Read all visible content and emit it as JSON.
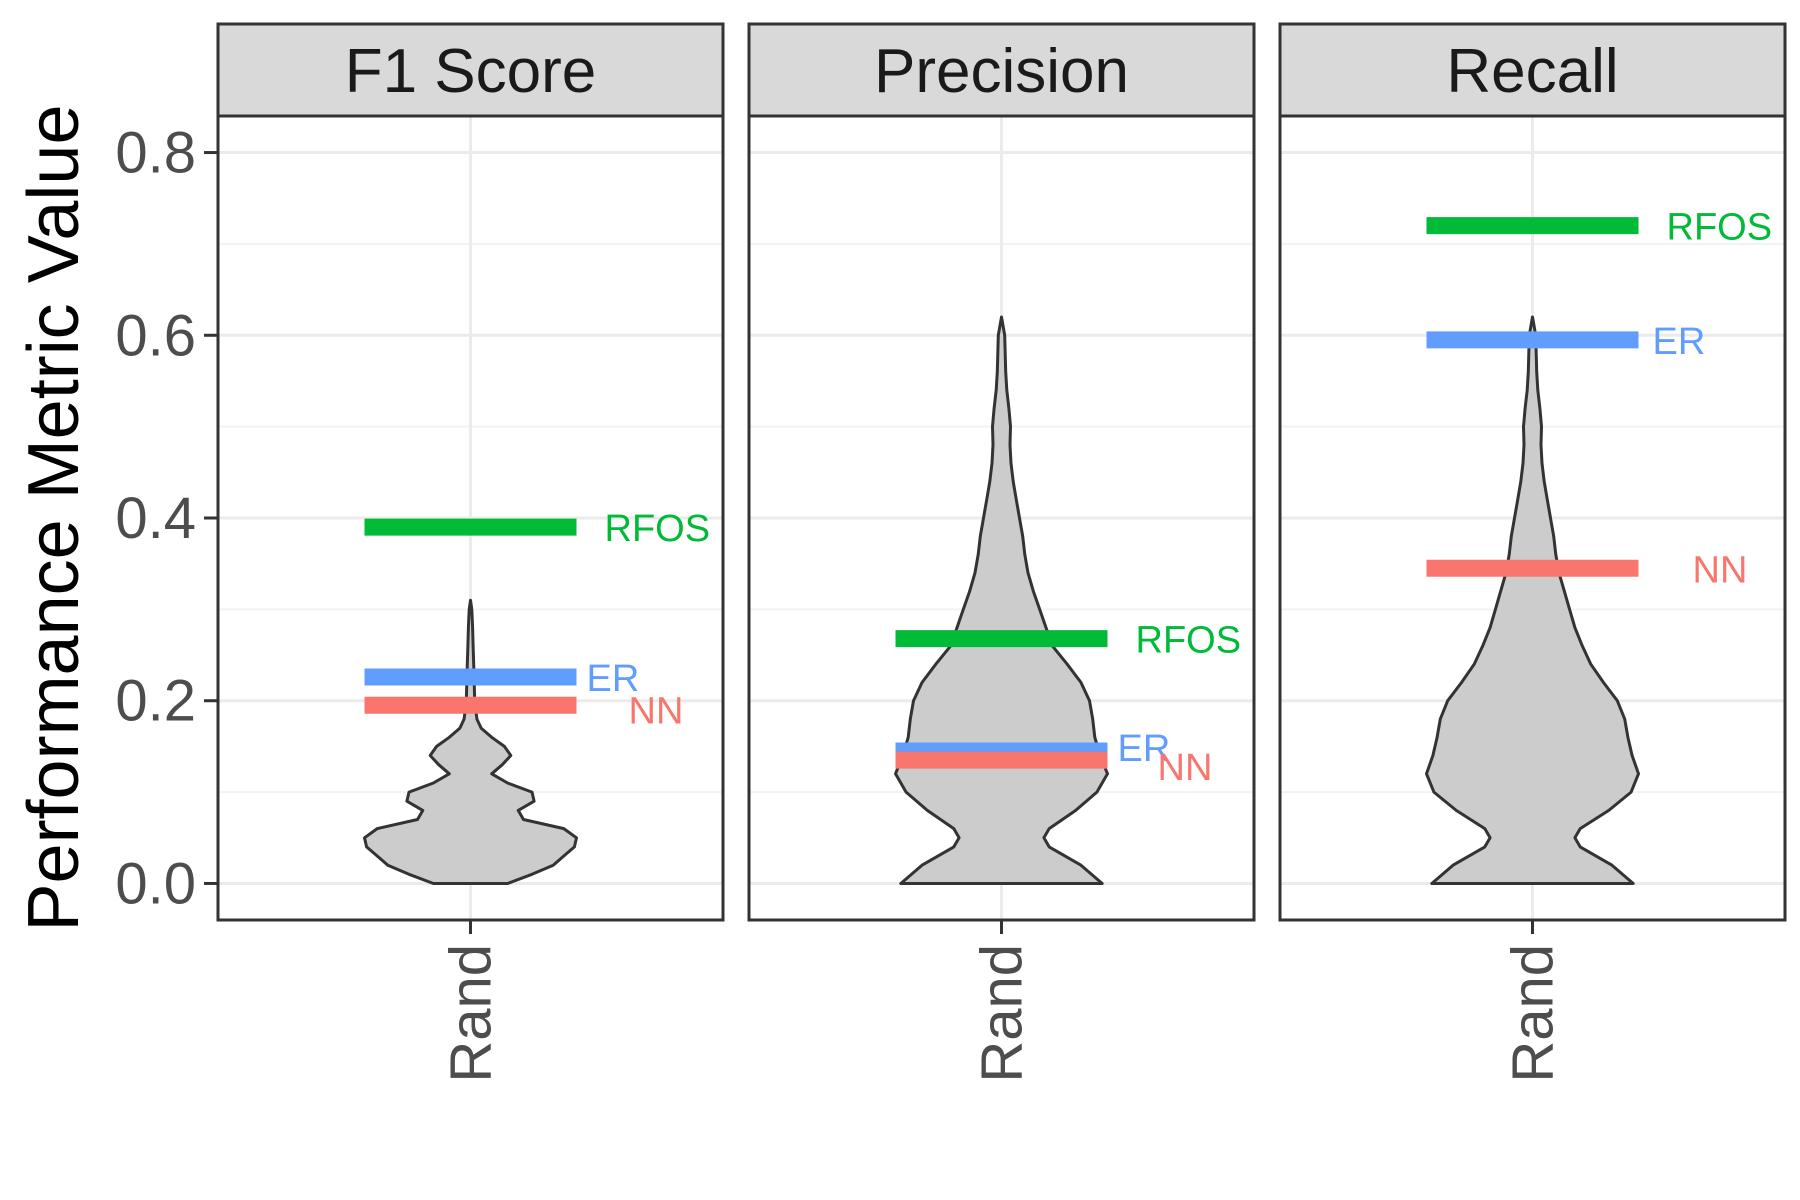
{
  "chart_data": {
    "type": "violin",
    "ylabel": "Performance Metric Value",
    "ylim": [
      -0.04,
      0.84
    ],
    "yticks": [
      0.0,
      0.2,
      0.4,
      0.6,
      0.8
    ],
    "ytick_labels": [
      "0.0",
      "0.2",
      "0.4",
      "0.6",
      "0.8"
    ],
    "grid": true,
    "colors": {
      "RFOS": "#00ba38",
      "ER": "#619cff",
      "NN": "#f8766d",
      "violin_fill": "#cccccc",
      "strip_fill": "#d9d9d9"
    },
    "panels": [
      {
        "facet": "F1 Score",
        "category": "Rand",
        "violin": {
          "y": [
            0.0,
            0.01,
            0.02,
            0.03,
            0.04,
            0.05,
            0.06,
            0.07,
            0.08,
            0.09,
            0.1,
            0.11,
            0.12,
            0.13,
            0.14,
            0.15,
            0.16,
            0.17,
            0.18,
            0.19,
            0.2,
            0.22,
            0.24,
            0.26,
            0.28,
            0.3,
            0.31
          ],
          "half_width": [
            0.35,
            0.58,
            0.78,
            0.88,
            0.98,
            1.0,
            0.88,
            0.5,
            0.45,
            0.6,
            0.58,
            0.35,
            0.2,
            0.3,
            0.38,
            0.32,
            0.2,
            0.1,
            0.06,
            0.05,
            0.04,
            0.035,
            0.03,
            0.025,
            0.02,
            0.012,
            0.0
          ]
        },
        "references": [
          {
            "name": "RFOS",
            "value": 0.39
          },
          {
            "name": "ER",
            "value": 0.226
          },
          {
            "name": "NN",
            "value": 0.195
          }
        ]
      },
      {
        "facet": "Precision",
        "category": "Rand",
        "violin": {
          "y": [
            0.0,
            0.02,
            0.04,
            0.05,
            0.06,
            0.08,
            0.1,
            0.12,
            0.14,
            0.16,
            0.18,
            0.2,
            0.22,
            0.24,
            0.26,
            0.28,
            0.3,
            0.32,
            0.34,
            0.36,
            0.38,
            0.4,
            0.42,
            0.44,
            0.46,
            0.48,
            0.5,
            0.52,
            0.54,
            0.56,
            0.58,
            0.6,
            0.62
          ],
          "half_width": [
            0.95,
            0.75,
            0.45,
            0.4,
            0.45,
            0.7,
            0.9,
            1.0,
            0.93,
            0.88,
            0.86,
            0.83,
            0.75,
            0.62,
            0.48,
            0.42,
            0.36,
            0.3,
            0.25,
            0.22,
            0.2,
            0.17,
            0.14,
            0.11,
            0.09,
            0.08,
            0.085,
            0.07,
            0.05,
            0.04,
            0.035,
            0.03,
            0.0
          ]
        },
        "references": [
          {
            "name": "RFOS",
            "value": 0.268
          },
          {
            "name": "ER",
            "value": 0.145
          },
          {
            "name": "NN",
            "value": 0.135
          }
        ]
      },
      {
        "facet": "Recall",
        "category": "Rand",
        "violin": {
          "y": [
            0.0,
            0.02,
            0.04,
            0.05,
            0.06,
            0.08,
            0.1,
            0.12,
            0.14,
            0.16,
            0.18,
            0.2,
            0.22,
            0.24,
            0.26,
            0.28,
            0.3,
            0.32,
            0.34,
            0.36,
            0.38,
            0.4,
            0.42,
            0.44,
            0.46,
            0.48,
            0.5,
            0.52,
            0.54,
            0.56,
            0.58,
            0.6,
            0.62
          ],
          "half_width": [
            0.95,
            0.75,
            0.45,
            0.4,
            0.45,
            0.72,
            0.93,
            1.0,
            0.94,
            0.9,
            0.87,
            0.8,
            0.67,
            0.55,
            0.47,
            0.4,
            0.35,
            0.3,
            0.25,
            0.22,
            0.2,
            0.17,
            0.14,
            0.11,
            0.09,
            0.08,
            0.085,
            0.07,
            0.05,
            0.04,
            0.035,
            0.03,
            0.0
          ]
        },
        "references": [
          {
            "name": "RFOS",
            "value": 0.72
          },
          {
            "name": "ER",
            "value": 0.595
          },
          {
            "name": "NN",
            "value": 0.345
          }
        ]
      }
    ]
  }
}
